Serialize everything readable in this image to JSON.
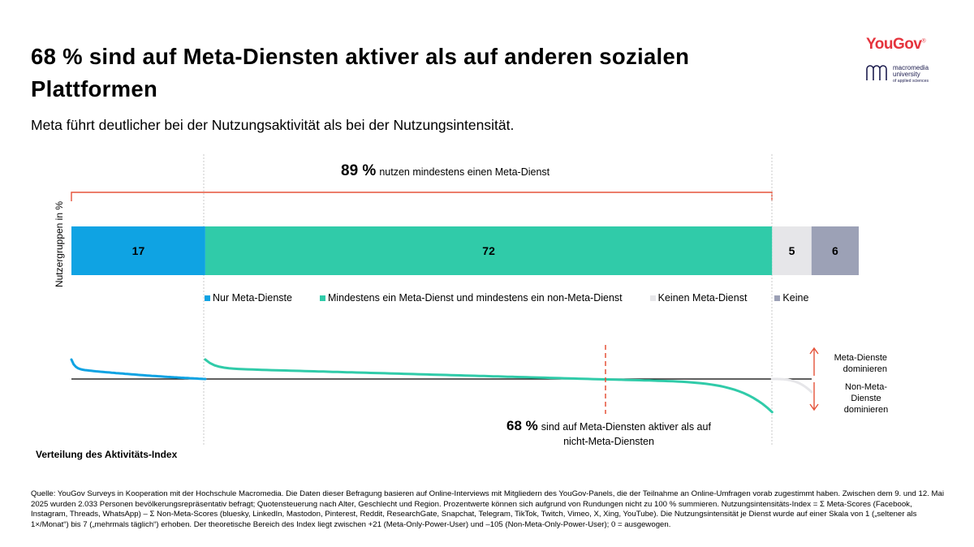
{
  "title": "68 % sind auf Meta-Diensten aktiver als auf anderen sozialen Plattformen",
  "subtitle": "Meta führt deutlicher bei der Nutzungsaktivität als bei der Nutzungsintensität.",
  "logos": {
    "yougov": "YouGov",
    "yougov_reg": "®",
    "macromedia_line1": "macromedia",
    "macromedia_line2": "university",
    "macromedia_line3": "of applied sciences"
  },
  "annotation_top": {
    "value": "89 %",
    "text": "nutzen mindestens einen Meta-Dienst"
  },
  "annotation_bottom": {
    "value": "68 %",
    "text_line1": "sind auf Meta-Diensten aktiver als auf",
    "text_line2": "nicht-Meta-Diensten"
  },
  "right_labels": {
    "top_line1": "Meta-Dienste",
    "top_line2": "dominieren",
    "bottom_line1": "Non-Meta-",
    "bottom_line2": "Dienste",
    "bottom_line3": "dominieren"
  },
  "distribution_label": "Verteilung des Aktivitäts-Index",
  "source": "Quelle: YouGov Surveys in Kooperation mit der Hochschule Macromedia. Die Daten dieser Befragung basieren auf Online-Interviews mit Mitgliedern des YouGov-Panels, die der Teilnahme an Online-Umfragen vorab zugestimmt haben. Zwischen dem 9. und 12. Mai 2025 wurden 2.033 Personen bevölkerungsrepräsentativ befragt; Quotensteuerung nach Alter, Geschlecht und Region. Prozentwerte können sich aufgrund von Rundungen nicht zu 100 % summieren. Nutzungsintensitäts-Index = Σ Meta-Scores (Facebook, Instagram, Threads, WhatsApp) – Σ Non-Meta-Scores (bluesky, LinkedIn, Mastodon, Pinterest, Reddit, ResearchGate, Snapchat, Telegram, TikTok, Twitch, Vimeo, X, Xing, YouTube). Die Nutzungsintensität je Dienst wurde auf einer Skala von 1 („seltener als 1×/Monat“) bis 7 („mehrmals täglich“) erhoben. Der theoretische Bereich des Index liegt zwischen +21 (Meta-Only-Power-User) und –105 (Non-Meta-Only-Power-User); 0 = ausgewogen.",
  "chart_data": {
    "type": "bar",
    "orientation": "horizontal-stacked",
    "ylabel": "Nutzergruppen in %",
    "series": [
      {
        "name": "Nur Meta-Dienste",
        "value": 17,
        "color": "#0fa3e3"
      },
      {
        "name": "Mindestens ein Meta-Dienst und mindestens ein non-Meta-Dienst",
        "value": 72,
        "color": "#30cba9"
      },
      {
        "name": "Keinen Meta-Dienst",
        "value": 5,
        "color": "#e6e6e9"
      },
      {
        "name": "Keine",
        "value": 6,
        "color": "#9ca1b6"
      }
    ],
    "labels": [
      "17",
      "72",
      "5",
      "6"
    ],
    "accent_color": "#e5533a",
    "distribution": {
      "description": "Sorted activity index per group (above line = Meta dominates, below = non-Meta dominates)",
      "segments": [
        {
          "group": "Nur Meta-Dienste",
          "start": 3.0,
          "end": 0.0
        },
        {
          "group": "Mindestens ein Meta-Dienst und mindestens ein non-Meta-Dienst",
          "start": 3.0,
          "end": -5.5,
          "zero_crossing_share": 0.68
        },
        {
          "group": "Keinen Meta-Dienst",
          "start": 0.0,
          "end": -2.0
        }
      ]
    }
  }
}
